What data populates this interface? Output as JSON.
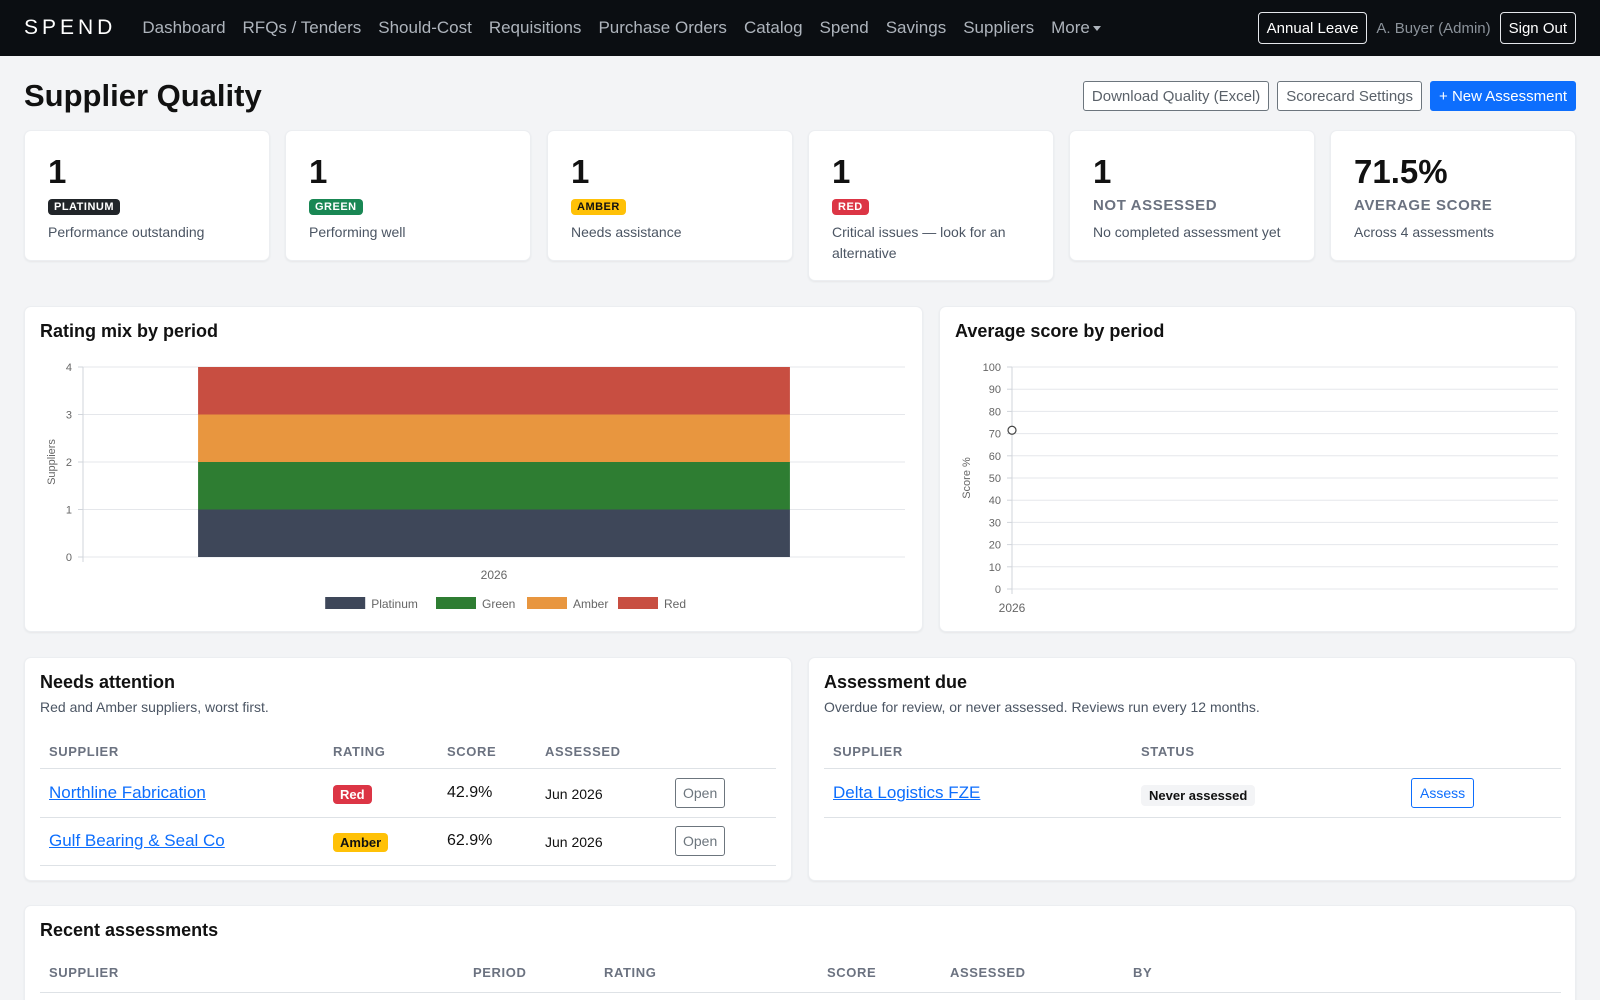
{
  "nav": {
    "brand": "SPEND",
    "links": [
      "Dashboard",
      "RFQs / Tenders",
      "Should-Cost",
      "Requisitions",
      "Purchase Orders",
      "Catalog",
      "Spend",
      "Savings",
      "Suppliers"
    ],
    "more": "More",
    "annual_leave": "Annual Leave",
    "user": "A. Buyer (Admin)",
    "sign_out": "Sign Out"
  },
  "page": {
    "title": "Supplier Quality",
    "actions": {
      "download": "Download Quality (Excel)",
      "settings": "Scorecard Settings",
      "new": "+ New Assessment"
    }
  },
  "stats": [
    {
      "value": "1",
      "badge": "PLATINUM",
      "color": "#212529",
      "desc": "Performance outstanding"
    },
    {
      "value": "1",
      "badge": "GREEN",
      "color": "#198754",
      "desc": "Performing well"
    },
    {
      "value": "1",
      "badge": "AMBER",
      "color": "#ffc107",
      "desc": "Needs assistance"
    },
    {
      "value": "1",
      "badge": "RED",
      "color": "#dc3545",
      "desc": "Critical issues — look for an alternative"
    },
    {
      "value": "1",
      "label": "NOT ASSESSED",
      "desc": "No completed assessment yet"
    },
    {
      "value": "71.5%",
      "label": "AVERAGE SCORE",
      "desc": "Across 4 assessments"
    }
  ],
  "rating_mix": {
    "title": "Rating mix by period",
    "chart_data": {
      "type": "bar",
      "stacked": true,
      "categories": [
        "2026"
      ],
      "ylabel": "Suppliers",
      "ylim": [
        0,
        4
      ],
      "yticks": [
        "0",
        "1",
        "2",
        "3",
        "4"
      ],
      "grid": true,
      "legend": "bottom",
      "series": [
        {
          "name": "Platinum",
          "values": [
            1
          ],
          "color": "#3e4759"
        },
        {
          "name": "Green",
          "values": [
            1
          ],
          "color": "#2e7d32"
        },
        {
          "name": "Amber",
          "values": [
            1
          ],
          "color": "#e8963f"
        },
        {
          "name": "Red",
          "values": [
            1
          ],
          "color": "#c84e41"
        }
      ]
    }
  },
  "avg_score": {
    "title": "Average score by period",
    "chart_data": {
      "type": "line",
      "x": [
        "2026"
      ],
      "ylabel": "Score %",
      "ylim": [
        0,
        100
      ],
      "yticks": [
        "0",
        "10",
        "20",
        "30",
        "40",
        "50",
        "60",
        "70",
        "80",
        "90",
        "100"
      ],
      "grid": true,
      "series": [
        {
          "values": [
            71.5
          ]
        }
      ]
    }
  },
  "needs_attention": {
    "title": "Needs attention",
    "subtitle": "Red and Amber suppliers, worst first.",
    "headers": [
      "SUPPLIER",
      "RATING",
      "SCORE",
      "ASSESSED"
    ],
    "rows": [
      {
        "supplier": "Northline Fabrication",
        "rating": "Red",
        "score": "42.9%",
        "assessed": "Jun 2026",
        "action": "Open"
      },
      {
        "supplier": "Gulf Bearing & Seal Co",
        "rating": "Amber",
        "score": "62.9%",
        "assessed": "Jun 2026",
        "action": "Open"
      }
    ]
  },
  "assessment_due": {
    "title": "Assessment due",
    "subtitle": "Overdue for review, or never assessed. Reviews run every 12 months.",
    "headers": [
      "SUPPLIER",
      "STATUS"
    ],
    "rows": [
      {
        "supplier": "Delta Logistics FZE",
        "status": "Never assessed",
        "action": "Assess"
      }
    ]
  },
  "recent": {
    "title": "Recent assessments",
    "headers": [
      "SUPPLIER",
      "PERIOD",
      "RATING",
      "SCORE",
      "ASSESSED",
      "BY"
    ]
  }
}
